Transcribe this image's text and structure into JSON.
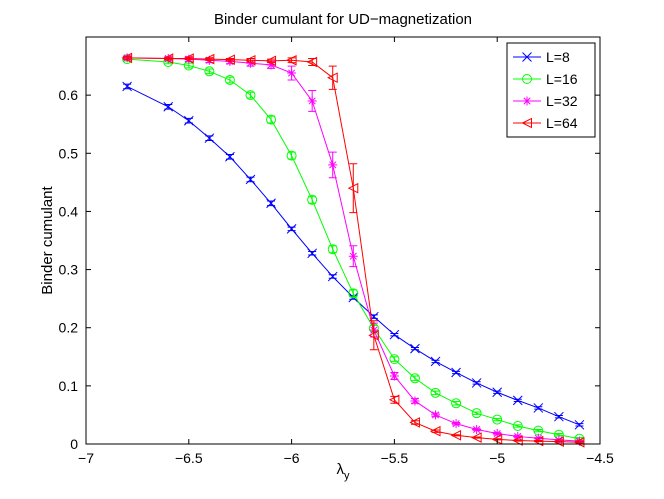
{
  "chart_data": {
    "type": "line",
    "title": "Binder cumulant for UD−magnetization",
    "xlabel_main": "λ",
    "xlabel_sub": "y",
    "ylabel": "Binder cumulant",
    "xlim": [
      -7,
      -4.5
    ],
    "ylim": [
      0,
      0.7
    ],
    "xticks": [
      -7,
      -6.5,
      -6,
      -5.5,
      -5,
      -4.5
    ],
    "xtick_labels": [
      "−7",
      "−6.5",
      "−6",
      "−5.5",
      "−5",
      "−4.5"
    ],
    "yticks": [
      0,
      0.1,
      0.2,
      0.3,
      0.4,
      0.5,
      0.6
    ],
    "ytick_labels": [
      "0",
      "0.1",
      "0.2",
      "0.3",
      "0.4",
      "0.5",
      "0.6"
    ],
    "grid": false,
    "legend_position": "top-right",
    "series": [
      {
        "name": "L=8",
        "color": "#0000ff",
        "marker": "x",
        "x": [
          -6.8,
          -6.6,
          -6.5,
          -6.4,
          -6.3,
          -6.2,
          -6.1,
          -6.0,
          -5.9,
          -5.8,
          -5.7,
          -5.6,
          -5.5,
          -5.4,
          -5.3,
          -5.2,
          -5.1,
          -5.0,
          -4.9,
          -4.8,
          -4.7,
          -4.6
        ],
        "y": [
          0.615,
          0.58,
          0.556,
          0.526,
          0.494,
          0.455,
          0.414,
          0.37,
          0.328,
          0.288,
          0.252,
          0.219,
          0.188,
          0.164,
          0.142,
          0.123,
          0.105,
          0.089,
          0.075,
          0.062,
          0.047,
          0.033
        ],
        "err": [
          0.004,
          0.004,
          0.004,
          0.004,
          0.004,
          0.004,
          0.004,
          0.003,
          0.003,
          0.003,
          0.003,
          0.003,
          0.002,
          0.002,
          0.002,
          0.002,
          0.002,
          0.002,
          0.002,
          0.002,
          0.002,
          0.002
        ]
      },
      {
        "name": "L=16",
        "color": "#00ff00",
        "marker": "o",
        "x": [
          -6.8,
          -6.6,
          -6.5,
          -6.4,
          -6.3,
          -6.2,
          -6.1,
          -6.0,
          -5.9,
          -5.8,
          -5.7,
          -5.6,
          -5.5,
          -5.4,
          -5.3,
          -5.2,
          -5.1,
          -5.0,
          -4.9,
          -4.8,
          -4.7,
          -4.6
        ],
        "y": [
          0.662,
          0.657,
          0.651,
          0.641,
          0.626,
          0.6,
          0.558,
          0.496,
          0.42,
          0.335,
          0.259,
          0.199,
          0.146,
          0.113,
          0.088,
          0.07,
          0.053,
          0.042,
          0.031,
          0.023,
          0.016,
          0.009
        ],
        "err": [
          0.003,
          0.003,
          0.004,
          0.004,
          0.005,
          0.005,
          0.006,
          0.006,
          0.006,
          0.006,
          0.006,
          0.005,
          0.004,
          0.004,
          0.003,
          0.003,
          0.002,
          0.002,
          0.002,
          0.002,
          0.002,
          0.002
        ]
      },
      {
        "name": "L=32",
        "color": "#ff00ff",
        "marker": "*",
        "x": [
          -6.8,
          -6.6,
          -6.5,
          -6.4,
          -6.3,
          -6.2,
          -6.1,
          -6.0,
          -5.9,
          -5.8,
          -5.7,
          -5.6,
          -5.5,
          -5.4,
          -5.3,
          -5.2,
          -5.1,
          -5.0,
          -4.9,
          -4.8,
          -4.7,
          -4.6
        ],
        "y": [
          0.664,
          0.663,
          0.662,
          0.66,
          0.658,
          0.655,
          0.652,
          0.638,
          0.59,
          0.48,
          0.323,
          0.196,
          0.117,
          0.074,
          0.05,
          0.035,
          0.025,
          0.018,
          0.013,
          0.01,
          0.007,
          0.005
        ],
        "err": [
          0.003,
          0.003,
          0.004,
          0.004,
          0.004,
          0.005,
          0.006,
          0.012,
          0.018,
          0.022,
          0.018,
          0.012,
          0.006,
          0.004,
          0.003,
          0.002,
          0.002,
          0.002,
          0.002,
          0.001,
          0.001,
          0.001
        ]
      },
      {
        "name": "L=64",
        "color": "#ff0000",
        "marker": "<",
        "x": [
          -6.8,
          -6.6,
          -6.5,
          -6.4,
          -6.3,
          -6.2,
          -6.1,
          -6.0,
          -5.9,
          -5.8,
          -5.7,
          -5.6,
          -5.5,
          -5.4,
          -5.3,
          -5.2,
          -5.1,
          -5.0,
          -4.9,
          -4.8,
          -4.7,
          -4.6
        ],
        "y": [
          0.664,
          0.663,
          0.663,
          0.662,
          0.661,
          0.66,
          0.659,
          0.66,
          0.657,
          0.63,
          0.44,
          0.187,
          0.076,
          0.037,
          0.022,
          0.015,
          0.011,
          0.008,
          0.006,
          0.005,
          0.004,
          0.003
        ],
        "err": [
          0.002,
          0.002,
          0.002,
          0.002,
          0.002,
          0.003,
          0.003,
          0.004,
          0.006,
          0.02,
          0.042,
          0.025,
          0.006,
          0.003,
          0.002,
          0.001,
          0.001,
          0.001,
          0.001,
          0.001,
          0.001,
          0.001
        ]
      }
    ]
  }
}
